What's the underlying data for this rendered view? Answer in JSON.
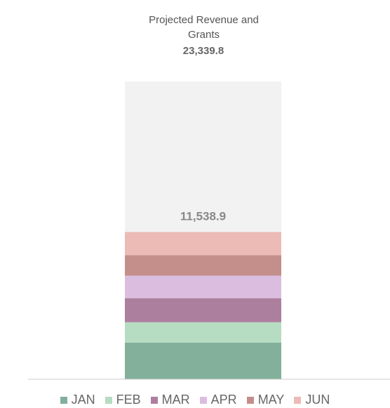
{
  "chart_data": {
    "type": "stacked-bar",
    "title": "Projected Revenue and Grants",
    "projected_total": {
      "value": 23339.8,
      "label": "23,339.8"
    },
    "stack_total": {
      "value": 11538.9,
      "label": "11,538.9"
    },
    "background_color": "#f2f2f2",
    "series": [
      {
        "name": "JAN",
        "color": "#82b09a",
        "values": [
          2870
        ]
      },
      {
        "name": "FEB",
        "color": "#b6dcc1",
        "values": [
          1600
        ]
      },
      {
        "name": "MAR",
        "color": "#ad7f9f",
        "values": [
          1880
        ]
      },
      {
        "name": "APR",
        "color": "#dbbedf",
        "values": [
          1770
        ]
      },
      {
        "name": "MAY",
        "color": "#c48e8b",
        "values": [
          1600
        ]
      },
      {
        "name": "JUN",
        "color": "#ecbbb6",
        "values": [
          1818.9
        ]
      }
    ]
  }
}
